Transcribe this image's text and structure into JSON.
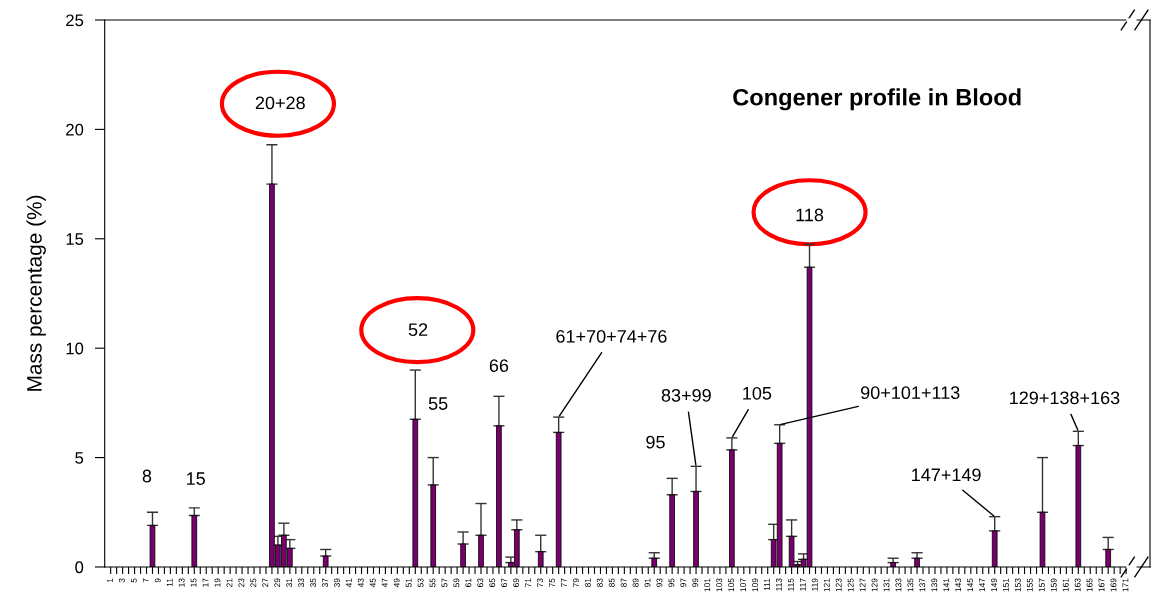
{
  "chart_data": {
    "type": "bar",
    "title": "Congener profile in Blood",
    "ylabel": "Mass percentage (%)",
    "color": "#7a006f",
    "x": [
      8,
      15,
      28,
      29,
      30,
      31,
      37,
      52,
      55,
      60,
      63,
      66,
      68,
      69,
      73,
      76,
      92,
      95,
      99,
      105,
      112,
      113,
      115,
      116,
      117,
      118,
      132,
      136,
      149,
      157,
      163,
      168
    ],
    "values": [
      1.9,
      2.35,
      17.5,
      1.0,
      1.45,
      0.85,
      0.5,
      6.75,
      3.75,
      1.05,
      1.45,
      6.45,
      0.2,
      1.7,
      0.7,
      6.15,
      0.4,
      3.3,
      3.45,
      5.35,
      1.25,
      5.65,
      1.4,
      0.1,
      0.35,
      13.7,
      0.2,
      0.4,
      1.65,
      2.5,
      5.55,
      0.8
    ],
    "errors": [
      [
        1.9,
        2.5
      ],
      [
        2.35,
        2.7
      ],
      [
        17.5,
        19.3
      ],
      [
        1.0,
        1.4
      ],
      [
        1.45,
        2.0
      ],
      [
        0.85,
        1.25
      ],
      [
        0.5,
        0.8
      ],
      [
        6.75,
        9.0
      ],
      [
        3.75,
        5.0
      ],
      [
        1.05,
        1.6
      ],
      [
        1.45,
        2.9
      ],
      [
        6.45,
        7.8
      ],
      [
        0.2,
        0.45
      ],
      [
        1.7,
        2.15
      ],
      [
        0.7,
        1.45
      ],
      [
        6.15,
        6.85
      ],
      [
        0.4,
        0.65
      ],
      [
        3.3,
        4.05
      ],
      [
        3.45,
        4.6
      ],
      [
        5.35,
        5.9
      ],
      [
        1.25,
        1.95
      ],
      [
        5.65,
        6.5
      ],
      [
        1.4,
        2.15
      ],
      [
        0.1,
        0.25
      ],
      [
        0.35,
        0.6
      ],
      [
        13.7,
        14.75
      ],
      [
        0.2,
        0.4
      ],
      [
        0.4,
        0.65
      ],
      [
        1.65,
        2.3
      ],
      [
        2.5,
        5.0
      ],
      [
        5.55,
        6.2
      ],
      [
        0.8,
        1.35
      ]
    ],
    "xlim": [
      0,
      175
    ],
    "ylim": [
      0,
      25
    ],
    "yticks": [
      0,
      5,
      10,
      15,
      20,
      25
    ],
    "xticks": [
      1,
      {
        "value": 2,
        "label": null
      },
      3,
      {
        "value": 4,
        "label": null
      },
      5,
      {
        "value": 6,
        "label": null
      },
      7,
      {
        "value": 8,
        "label": null
      },
      9,
      {
        "value": 10,
        "label": null
      },
      11,
      {
        "value": 12,
        "label": null
      },
      13,
      {
        "value": 14,
        "label": null
      },
      15,
      {
        "value": 16,
        "label": null
      },
      17,
      {
        "value": 18,
        "label": null
      },
      19,
      {
        "value": 20,
        "label": null
      },
      21,
      {
        "value": 22,
        "label": null
      },
      23,
      {
        "value": 24,
        "label": null
      },
      25,
      {
        "value": 26,
        "label": null
      },
      27,
      {
        "value": 28,
        "label": null
      },
      29,
      {
        "value": 30,
        "label": null
      },
      31,
      {
        "value": 32,
        "label": null
      },
      33,
      {
        "value": 34,
        "label": null
      },
      35,
      {
        "value": 36,
        "label": null
      },
      37,
      {
        "value": 38,
        "label": null
      },
      39,
      {
        "value": 40,
        "label": null
      },
      41,
      {
        "value": 42,
        "label": null
      },
      43,
      {
        "value": 44,
        "label": null
      },
      45,
      {
        "value": 46,
        "label": null
      },
      47,
      {
        "value": 48,
        "label": null
      },
      49,
      {
        "value": 50,
        "label": null
      },
      51,
      {
        "value": 52,
        "label": null
      },
      53,
      {
        "value": 54,
        "label": null
      },
      55,
      {
        "value": 56,
        "label": null
      },
      57,
      {
        "value": 58,
        "label": null
      },
      59,
      {
        "value": 60,
        "label": null
      },
      61,
      {
        "value": 62,
        "label": null
      },
      63,
      {
        "value": 64,
        "label": null
      },
      65,
      {
        "value": 66,
        "label": null
      },
      67,
      {
        "value": 68,
        "label": null
      },
      69,
      {
        "value": 70,
        "label": null
      },
      71,
      {
        "value": 72,
        "label": null
      },
      73,
      {
        "value": 74,
        "label": null
      },
      75,
      {
        "value": 76,
        "label": null
      },
      77,
      {
        "value": 78,
        "label": null
      },
      79,
      {
        "value": 80,
        "label": null
      },
      81,
      {
        "value": 82,
        "label": null
      },
      83,
      {
        "value": 84,
        "label": null
      },
      85,
      {
        "value": 86,
        "label": null
      },
      87,
      {
        "value": 88,
        "label": null
      },
      89,
      {
        "value": 90,
        "label": null
      },
      91,
      {
        "value": 92,
        "label": null
      },
      93,
      {
        "value": 94,
        "label": null
      },
      95,
      {
        "value": 96,
        "label": null
      },
      97,
      {
        "value": 98,
        "label": null
      },
      99,
      {
        "value": 100,
        "label": null
      },
      101,
      {
        "value": 102,
        "label": null
      },
      103,
      {
        "value": 104,
        "label": null
      },
      105,
      {
        "value": 106,
        "label": null
      },
      107,
      {
        "value": 108,
        "label": null
      },
      109,
      {
        "value": 110,
        "label": null
      },
      111,
      {
        "value": 112,
        "label": null
      },
      113,
      {
        "value": 114,
        "label": null
      },
      115,
      {
        "value": 116,
        "label": null
      },
      117,
      {
        "value": 118,
        "label": null
      },
      119,
      {
        "value": 120,
        "label": null
      },
      121,
      {
        "value": 122,
        "label": null
      },
      123,
      {
        "value": 124,
        "label": null
      },
      125,
      {
        "value": 126,
        "label": null
      },
      127,
      {
        "value": 128,
        "label": null
      },
      129,
      {
        "value": 130,
        "label": null
      },
      131,
      {
        "value": 132,
        "label": null
      },
      133,
      {
        "value": 134,
        "label": null
      },
      135,
      {
        "value": 136,
        "label": null
      },
      137,
      {
        "value": 138,
        "label": null
      },
      139,
      {
        "value": 140,
        "label": null
      },
      141,
      {
        "value": 142,
        "label": null
      },
      143,
      {
        "value": 144,
        "label": null
      },
      145,
      {
        "value": 146,
        "label": null
      },
      147,
      {
        "value": 148,
        "label": null
      },
      149,
      {
        "value": 150,
        "label": null
      },
      151,
      {
        "value": 152,
        "label": null
      },
      153,
      {
        "value": 154,
        "label": null
      },
      155,
      {
        "value": 156,
        "label": null
      },
      157,
      {
        "value": 158,
        "label": null
      },
      159,
      {
        "value": 160,
        "label": null
      },
      161,
      {
        "value": 162,
        "label": null
      },
      163,
      {
        "value": 164,
        "label": null
      },
      165,
      {
        "value": 166,
        "label": null
      },
      167,
      {
        "value": 168,
        "label": null
      },
      169,
      {
        "value": 170,
        "label": null
      },
      171
    ],
    "grid": false,
    "legend": false,
    "annotations": [
      {
        "text": "8",
        "x": 8,
        "y": 2.5
      },
      {
        "text": "15",
        "x": 15,
        "y": 2.7
      },
      {
        "text": "20+28",
        "x": 28,
        "y": 19.3
      },
      {
        "text": "52",
        "x": 52,
        "y": 9.0
      },
      "55",
      {
        "text": "66",
        "x": 66,
        "y": 7.8
      },
      {
        "text": "61+70+74+76",
        "x": 76,
        "y": 6.85
      },
      {
        "text": "95",
        "x": 95,
        "y": 4.05
      },
      {
        "text": "83+99",
        "x": 99,
        "y": 4.6
      },
      {
        "text": "105",
        "x": 105,
        "y": 5.9
      },
      {
        "text": "90+101+113",
        "x": 113,
        "y": 6.5
      },
      {
        "text": "118",
        "x": 118,
        "y": 14.75
      },
      {
        "text": "147+149",
        "x": 149,
        "y": 2.3
      },
      {
        "text": "129+138+163",
        "x": 163,
        "y": 6.2
      }
    ]
  }
}
